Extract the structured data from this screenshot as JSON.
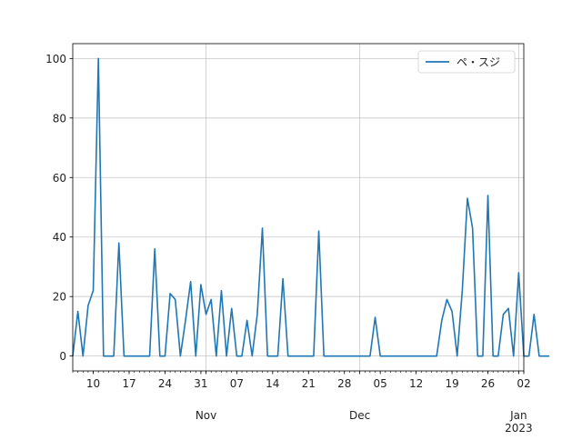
{
  "chart_data": {
    "type": "line",
    "x_start": "2022-10-06",
    "x_end": "2023-01-02",
    "xlim": [
      "2022-10-06",
      "2023-01-02"
    ],
    "ylim": [
      -5,
      105
    ],
    "y_ticks": [
      0,
      20,
      40,
      60,
      80,
      100
    ],
    "x_ticks": [
      {
        "date": "2022-10-10",
        "label": "10"
      },
      {
        "date": "2022-10-17",
        "label": "17"
      },
      {
        "date": "2022-10-24",
        "label": "24"
      },
      {
        "date": "2022-10-31",
        "label": "31"
      },
      {
        "date": "2022-11-07",
        "label": "07"
      },
      {
        "date": "2022-11-14",
        "label": "14"
      },
      {
        "date": "2022-11-21",
        "label": "21"
      },
      {
        "date": "2022-11-28",
        "label": "28"
      },
      {
        "date": "2022-12-05",
        "label": "05"
      },
      {
        "date": "2022-12-12",
        "label": "12"
      },
      {
        "date": "2022-12-19",
        "label": "19"
      },
      {
        "date": "2022-12-26",
        "label": "26"
      },
      {
        "date": "2023-01-02",
        "label": "02"
      }
    ],
    "month_labels": [
      {
        "date": "2022-11-01",
        "label": "Nov"
      },
      {
        "date": "2022-12-01",
        "label": "Dec"
      },
      {
        "date": "2023-01-01",
        "label": "Jan"
      }
    ],
    "year_label": {
      "date": "2023-01-01",
      "label": "2023"
    },
    "grid": true,
    "legend_position": "top-right",
    "series": [
      {
        "name": "ペ・スジ",
        "color": "#1f77b4",
        "values": [
          0,
          15,
          0,
          17,
          22,
          100,
          0,
          0,
          0,
          38,
          0,
          0,
          0,
          0,
          0,
          0,
          36,
          0,
          0,
          21,
          19,
          0,
          12,
          25,
          0,
          24,
          14,
          19,
          0,
          22,
          0,
          16,
          0,
          0,
          12,
          0,
          14,
          43,
          0,
          0,
          0,
          26,
          0,
          0,
          0,
          0,
          0,
          0,
          42,
          0,
          0,
          0,
          0,
          0,
          0,
          0,
          0,
          0,
          0,
          13,
          0,
          0,
          0,
          0,
          0,
          0,
          0,
          0,
          0,
          0,
          0,
          0,
          12,
          19,
          15,
          0,
          22,
          53,
          43,
          0,
          0,
          54,
          0,
          0,
          14,
          16,
          0,
          28,
          0,
          0,
          14,
          0,
          0,
          0
        ]
      }
    ]
  }
}
